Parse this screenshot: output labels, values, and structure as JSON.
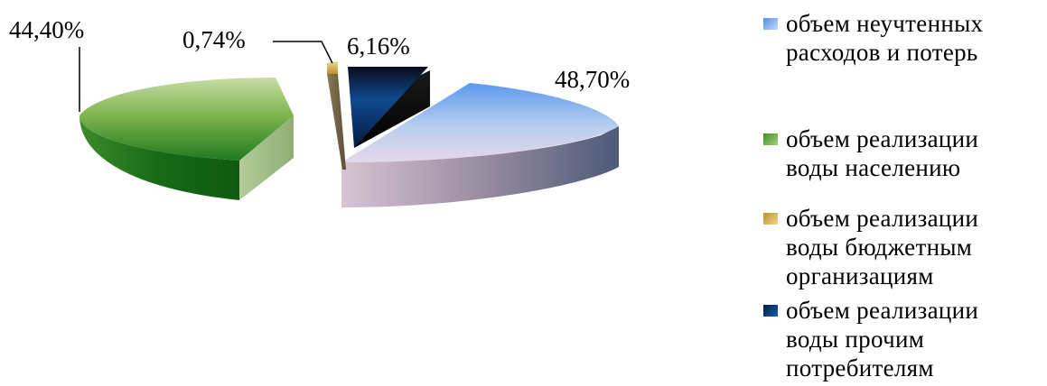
{
  "chart_data": {
    "type": "pie",
    "title": "",
    "slices": [
      {
        "label": "объем неучтенных расходов и потерь",
        "value": 48.7,
        "value_label": "48,70%",
        "color": "#6fa8f0"
      },
      {
        "label": "объем реализации воды населению",
        "value": 44.4,
        "value_label": "44,40%",
        "color": "#4e9a2e"
      },
      {
        "label": "объем реализации воды бюджетным организациям",
        "value": 0.74,
        "value_label": "0,74%",
        "color": "#c8a650"
      },
      {
        "label": "объем реализации воды прочим потребителям",
        "value": 6.16,
        "value_label": "6,16%",
        "color": "#0a3a7a"
      }
    ],
    "legend_position": "right",
    "exploded": true,
    "style": "3d"
  },
  "legend": {
    "items": [
      "объем неучтенных\nрасходов и потерь",
      "объем реализации\nводы населению",
      "объем реализации\nводы бюджетным\nорганизациям",
      "объем реализации\nводы прочим\nпотребителям"
    ]
  }
}
